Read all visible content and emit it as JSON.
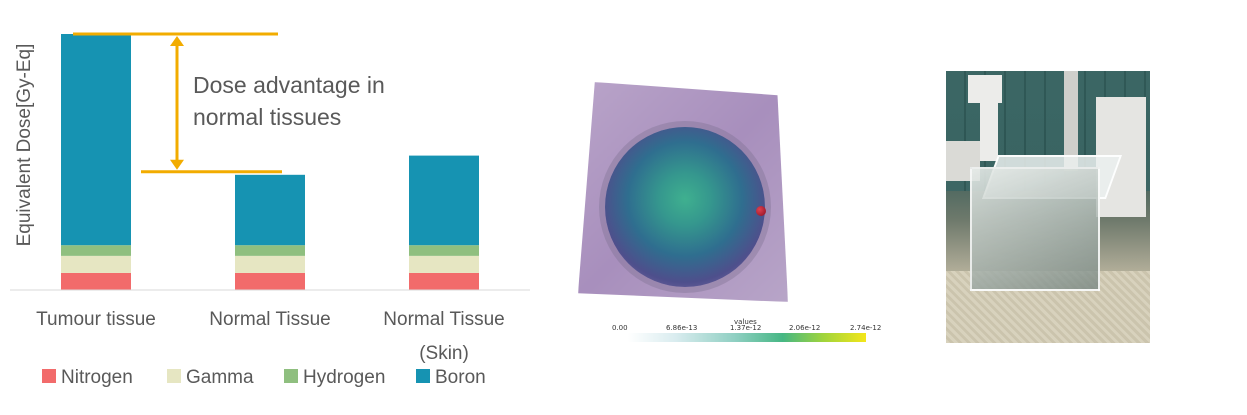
{
  "chart_data": {
    "type": "bar",
    "stacked": true,
    "ylabel": "Equivalent Dose[Gy-Eq]",
    "categories": [
      "Tumour tissue",
      "Normal Tissue",
      "Normal Tissue\n(Skin)"
    ],
    "category_labels": [
      {
        "line1": "Tumour tissue",
        "line2": ""
      },
      {
        "line1": "Normal Tissue",
        "line2": ""
      },
      {
        "line1": "Normal Tissue",
        "line2": "(Skin)"
      }
    ],
    "series": [
      {
        "name": "Nitrogen",
        "color": "#f26b6b",
        "values": [
          8,
          8,
          8
        ]
      },
      {
        "name": "Gamma",
        "color": "#e6e6c2",
        "values": [
          8,
          8,
          8
        ]
      },
      {
        "name": "Hydrogen",
        "color": "#8fbf7f",
        "values": [
          5,
          5,
          5
        ]
      },
      {
        "name": "Boron",
        "color": "#1693b2",
        "values": [
          99,
          33,
          42
        ]
      }
    ],
    "ylim": [
      0,
      120
    ],
    "grid": false,
    "legend": "bottom",
    "annotation": {
      "line1": "Dose advantage in",
      "line2": "normal tissues",
      "color": "#f2ac00"
    }
  },
  "colorbar": {
    "title": "values",
    "ticks": [
      "0.00",
      "6.86e-13",
      "1.37e-12",
      "2.06e-12",
      "2.74e-12"
    ]
  }
}
